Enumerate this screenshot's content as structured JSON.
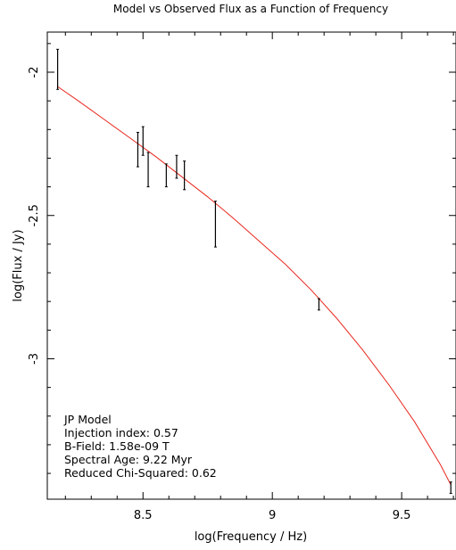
{
  "chart_data": {
    "type": "scatter",
    "title": "Model vs Observed Flux as a Function of Frequency",
    "xlabel": "log(Frequency / Hz)",
    "ylabel": "log(Flux / Jy)",
    "xlim": [
      8.13,
      9.71
    ],
    "ylim": [
      -3.49,
      -1.86
    ],
    "x_ticks": [
      8.5,
      9,
      9.5
    ],
    "x_tick_labels": [
      "8.5",
      "9",
      "9.5"
    ],
    "y_ticks": [
      -2,
      -2.5,
      -3
    ],
    "y_tick_labels": [
      "-2",
      "-2.5",
      "-3"
    ],
    "grid": false,
    "series": [
      {
        "kind": "observed",
        "style": "errorbar",
        "color": "#000000",
        "points": [
          {
            "x": 8.17,
            "y": -1.99,
            "err": 0.07
          },
          {
            "x": 8.48,
            "y": -2.27,
            "err": 0.06
          },
          {
            "x": 8.5,
            "y": -2.24,
            "err": 0.05
          },
          {
            "x": 8.52,
            "y": -2.34,
            "err": 0.06
          },
          {
            "x": 8.59,
            "y": -2.36,
            "err": 0.04
          },
          {
            "x": 8.63,
            "y": -2.33,
            "err": 0.04
          },
          {
            "x": 8.66,
            "y": -2.36,
            "err": 0.05
          },
          {
            "x": 8.78,
            "y": -2.53,
            "err": 0.08
          },
          {
            "x": 9.18,
            "y": -2.81,
            "err": 0.02
          },
          {
            "x": 9.69,
            "y": -3.45,
            "err": 0.02
          }
        ]
      },
      {
        "kind": "model",
        "style": "line",
        "color": "#e8281e",
        "x": [
          8.17,
          8.25,
          8.35,
          8.45,
          8.55,
          8.65,
          8.75,
          8.85,
          8.95,
          9.05,
          9.15,
          9.25,
          9.35,
          9.45,
          9.55,
          9.65,
          9.69
        ],
        "y": [
          -2.05,
          -2.1,
          -2.165,
          -2.23,
          -2.295,
          -2.365,
          -2.435,
          -2.51,
          -2.59,
          -2.67,
          -2.76,
          -2.86,
          -2.97,
          -3.09,
          -3.22,
          -3.37,
          -3.44
        ]
      }
    ],
    "annotation_lines": [
      "JP Model",
      "Injection index: 0.57",
      "B-Field: 1.58e-09 T",
      "Spectral Age: 9.22 Myr",
      "Reduced Chi-Squared: 0.62"
    ]
  }
}
